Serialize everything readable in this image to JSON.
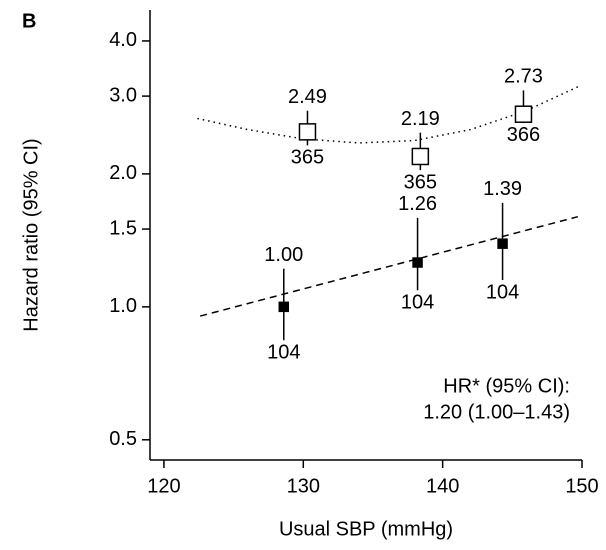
{
  "chart_data": {
    "type": "scatter",
    "panel_label": "B",
    "xlabel": "Usual SBP (mmHg)",
    "ylabel": "Hazard ratio (95% CI)",
    "xlim": [
      119,
      150
    ],
    "xticks": [
      120,
      130,
      140,
      150
    ],
    "ylim": [
      0.45,
      4.7
    ],
    "yscale": "log",
    "yticks": [
      {
        "value": 4,
        "label": "4.0"
      },
      {
        "value": 3,
        "label": "3.0"
      },
      {
        "value": 2,
        "label": "2.0"
      },
      1.5,
      {
        "value": 1,
        "label": "1.0"
      },
      0.5
    ],
    "series": [
      {
        "marker": "square-filled",
        "color": "#000000",
        "x": [
          128.6,
          138.2,
          144.3
        ],
        "values": [
          1.0,
          1.26,
          1.39
        ],
        "value_labels": [
          "1.00",
          "1.26",
          "1.39"
        ],
        "lower": [
          0.84,
          1.09,
          1.15
        ],
        "upper": [
          1.22,
          1.59,
          1.72
        ],
        "counts": [
          104,
          104,
          104
        ],
        "fit": {
          "style": "dashed",
          "x": [
            122.6,
            149.7
          ],
          "values": [
            0.953,
            1.6
          ]
        }
      },
      {
        "marker": "square-open",
        "color": "#000000",
        "x": [
          130.3,
          138.4,
          145.8
        ],
        "values": [
          2.49,
          2.19,
          2.73
        ],
        "value_labels": [
          "2.49",
          "2.19",
          "2.73"
        ],
        "lower": [
          2.32,
          2.04,
          2.61
        ],
        "upper": [
          2.78,
          2.48,
          3.09
        ],
        "counts": [
          365,
          365,
          366
        ],
        "fit": {
          "style": "dotted",
          "x": [
            122.4,
            126,
            130,
            134,
            138,
            142,
            146,
            149.9
          ],
          "values": [
            2.67,
            2.52,
            2.4,
            2.35,
            2.38,
            2.52,
            2.78,
            3.17
          ]
        }
      }
    ],
    "annotations": [
      "HR* (95% CI):",
      "1.20 (1.00–1.43)"
    ]
  }
}
